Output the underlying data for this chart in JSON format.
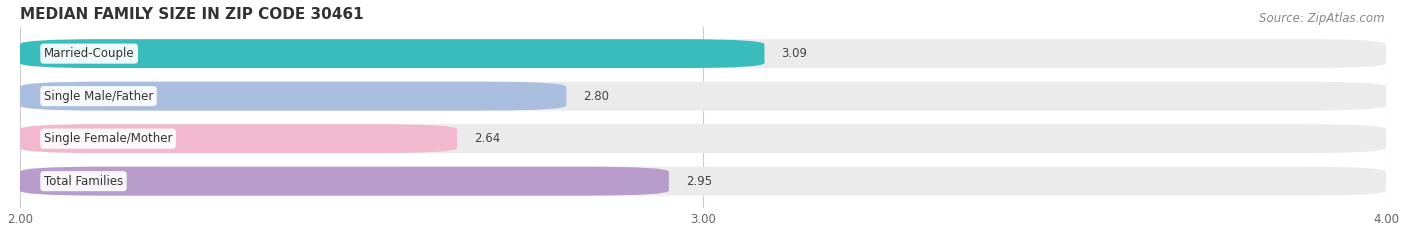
{
  "title": "MEDIAN FAMILY SIZE IN ZIP CODE 30461",
  "source": "Source: ZipAtlas.com",
  "categories": [
    "Married-Couple",
    "Single Male/Father",
    "Single Female/Mother",
    "Total Families"
  ],
  "values": [
    3.09,
    2.8,
    2.64,
    2.95
  ],
  "bar_colors": [
    "#3bbcbc",
    "#aabfe0",
    "#f2b8ce",
    "#b89ccc"
  ],
  "xlim": [
    2.0,
    4.0
  ],
  "xticks": [
    2.0,
    3.0,
    4.0
  ],
  "xtick_labels": [
    "2.00",
    "3.00",
    "4.00"
  ],
  "background_color": "#ffffff",
  "bar_bg_color": "#ebebeb",
  "title_fontsize": 11,
  "label_fontsize": 8.5,
  "value_fontsize": 8.5,
  "source_fontsize": 8.5
}
